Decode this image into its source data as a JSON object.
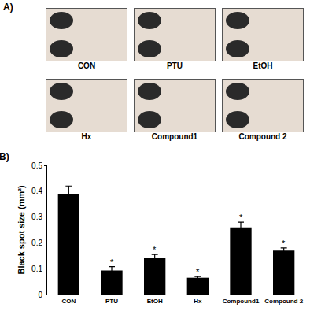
{
  "panels": {
    "a": {
      "label": "A)",
      "captions": [
        "CON",
        "PTU",
        "EtOH",
        "Hx",
        "Compound1",
        "Compound 2"
      ]
    },
    "b": {
      "label": "B)"
    }
  },
  "chart_data": {
    "type": "bar",
    "categories": [
      "CON",
      "PTU",
      "EtOH",
      "Hx",
      "Compound1",
      "Compound 2"
    ],
    "values": [
      0.39,
      0.093,
      0.14,
      0.065,
      0.26,
      0.17
    ],
    "error": [
      0.03,
      0.015,
      0.015,
      0.005,
      0.02,
      0.01
    ],
    "color": "#000000",
    "y_label": "Black spot size (mm²)",
    "ylim": [
      0,
      0.5
    ],
    "yticks": [
      0,
      0.1,
      0.2,
      0.3,
      0.4,
      0.5
    ],
    "grid": false,
    "annotations": [
      {
        "text": "*",
        "x": "PTU"
      },
      {
        "text": "*",
        "x": "EtOH"
      },
      {
        "text": "*",
        "x": "Hx"
      },
      {
        "text": "*",
        "x": "Compound1"
      },
      {
        "text": "*",
        "x": "Compound 2"
      }
    ]
  }
}
